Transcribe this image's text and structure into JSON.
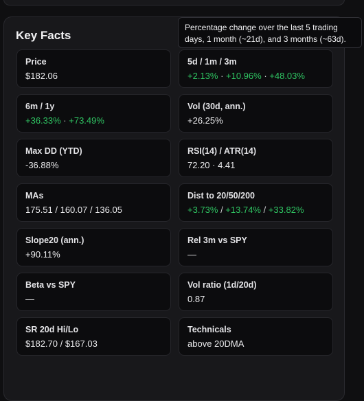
{
  "panel": {
    "title": "Key Facts"
  },
  "tooltip": {
    "text": "Percentage change over the last 5 trading days, 1 month (~21d), and 3 months (~63d)."
  },
  "cards": [
    {
      "label": "Price",
      "value": "$182.06"
    },
    {
      "label": "5d / 1m / 3m",
      "parts": [
        "+2.13%",
        " · ",
        "+10.96%",
        " · ",
        "+48.03%"
      ]
    },
    {
      "label": "6m / 1y",
      "parts": [
        "+36.33%",
        " · ",
        "+73.49%"
      ]
    },
    {
      "label": "Vol (30d, ann.)",
      "value": "+26.25%"
    },
    {
      "label": "Max DD (YTD)",
      "value": "-36.88%"
    },
    {
      "label": "RSI(14) / ATR(14)",
      "value": "72.20 · 4.41"
    },
    {
      "label": "MAs",
      "value": "175.51 / 160.07 / 136.05"
    },
    {
      "label": "Dist to 20/50/200",
      "parts": [
        "+3.73%",
        " / ",
        "+13.74%",
        " / ",
        "+33.82%"
      ]
    },
    {
      "label": "Slope20 (ann.)",
      "value": "+90.11%"
    },
    {
      "label": "Rel 3m vs SPY",
      "value": "—"
    },
    {
      "label": "Beta vs SPY",
      "value": "—"
    },
    {
      "label": "Vol ratio (1d/20d)",
      "value": "0.87"
    },
    {
      "label": "SR 20d Hi/Lo",
      "value": "$182.70 / $167.03"
    },
    {
      "label": "Technicals",
      "value": "above 20DMA"
    }
  ],
  "colors": {
    "positive": "#2fc462",
    "background": "#0f0f11",
    "panel": "#18181b"
  }
}
